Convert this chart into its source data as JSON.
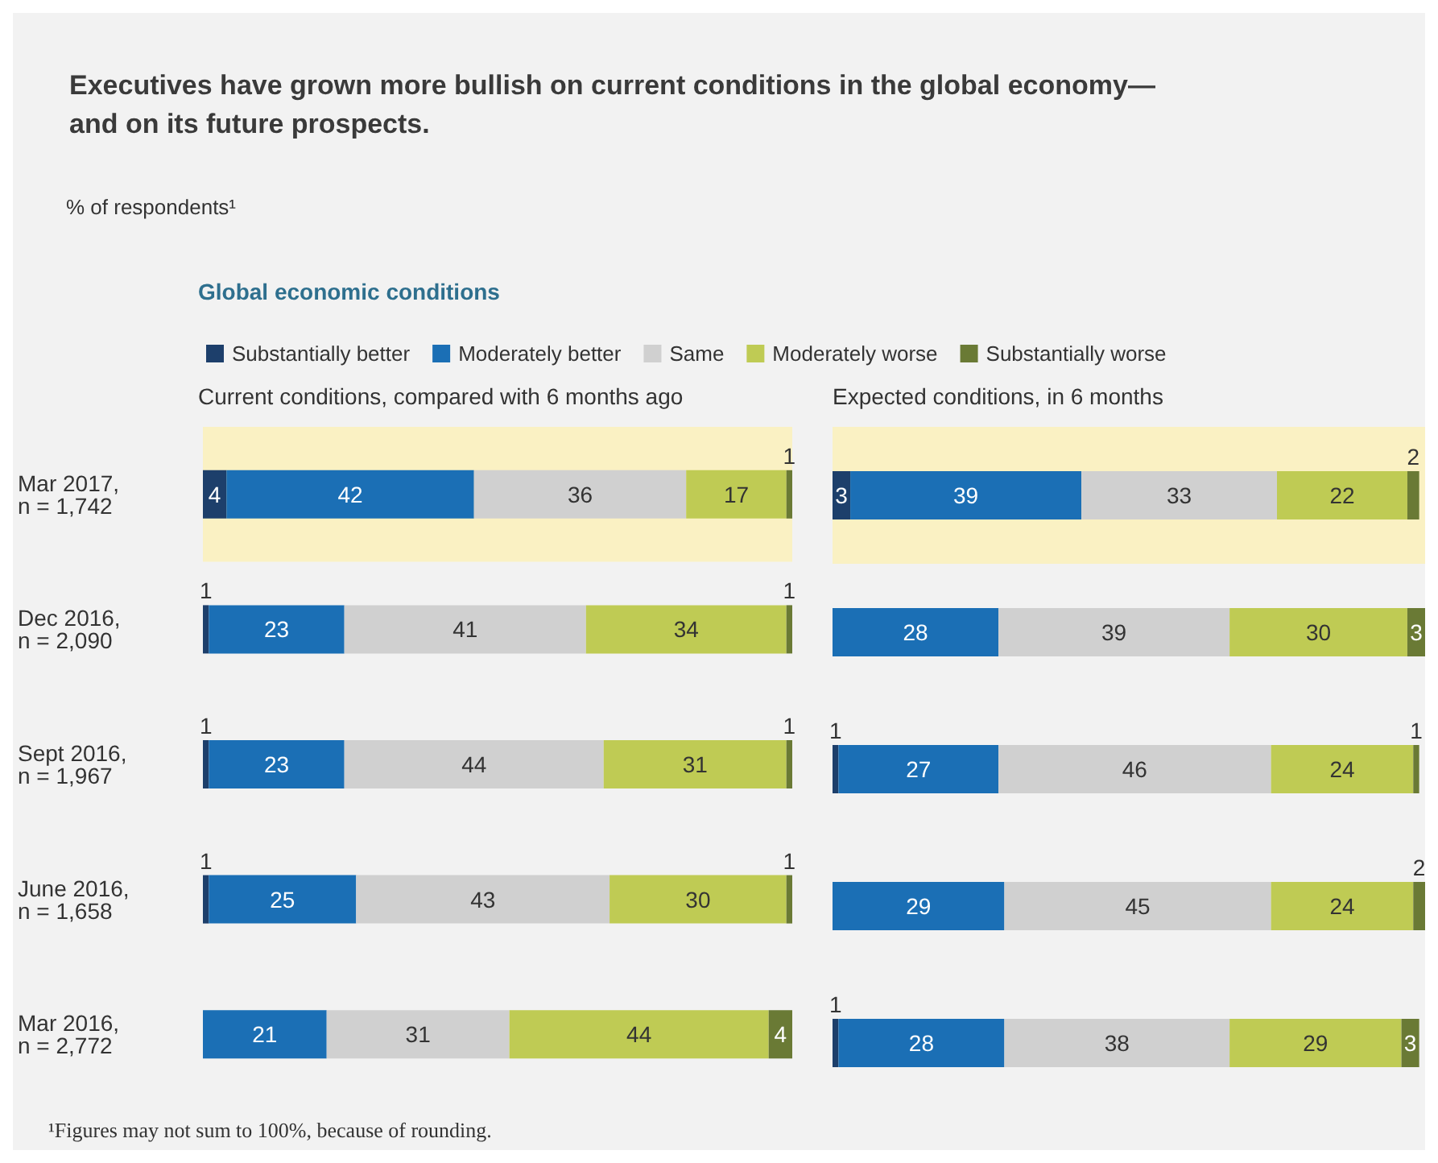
{
  "chart_data": [
    {
      "type": "bar",
      "orientation": "horizontal",
      "stacked": true,
      "data_labels": true,
      "tick_labels": "y",
      "legend": "top",
      "title": "Executives have grown more bullish on current conditions in the global economy—\nand on its future prospects.",
      "subtitle": "% of respondents¹",
      "legend_title": "Global economic conditions",
      "xlabel": "Current conditions, compared with 6 months ago",
      "annotations": [
        "¹Figures may not sum to 100%, because of rounding."
      ],
      "categories": [
        "Mar 2017,\nn = 1,742",
        "Dec 2016,\nn = 2,090",
        "Sept 2016,\nn = 1,967",
        "June 2016,\nn = 1,658",
        "Mar 2016,\nn = 2,772"
      ],
      "bands": [
        {
          "axis": "y",
          "from": "Mar 2017,\nn = 1,742",
          "to": "Mar 2017,\nn = 1,742",
          "color": "#faf1c3"
        }
      ],
      "series": [
        {
          "name": "Substantially better",
          "color": "#1d3f6b",
          "values": [
            4,
            1,
            1,
            1,
            null
          ]
        },
        {
          "name": "Moderately better",
          "color": "#1b6fb5",
          "values": [
            42,
            23,
            23,
            25,
            21
          ]
        },
        {
          "name": "Same",
          "color": "#d0d0d0",
          "values": [
            36,
            41,
            44,
            43,
            31
          ]
        },
        {
          "name": "Moderately worse",
          "color": "#bfcb54",
          "values": [
            17,
            34,
            31,
            30,
            44
          ]
        },
        {
          "name": "Substantially worse",
          "color": "#6a7a35",
          "values": [
            1,
            1,
            1,
            1,
            4
          ]
        }
      ]
    },
    {
      "type": "bar",
      "orientation": "horizontal",
      "stacked": true,
      "data_labels": true,
      "tick_labels": false,
      "xlabel": "Expected conditions, in 6 months",
      "categories": [
        "Mar 2017,\nn = 1,742",
        "Dec 2016,\nn = 2,090",
        "Sept 2016,\nn = 1,967",
        "June 2016,\nn = 1,658",
        "Mar 2016,\nn = 2,772"
      ],
      "bands": [
        {
          "axis": "y",
          "from": "Mar 2017,\nn = 1,742",
          "to": "Mar 2017,\nn = 1,742",
          "color": "#faf1c3"
        }
      ],
      "series": [
        {
          "color": "#1d3f6b",
          "values": [
            3,
            null,
            1,
            null,
            1
          ]
        },
        {
          "color": "#1b6fb5",
          "values": [
            39,
            28,
            27,
            29,
            28
          ]
        },
        {
          "color": "#d0d0d0",
          "values": [
            33,
            39,
            46,
            45,
            38
          ]
        },
        {
          "color": "#bfcb54",
          "values": [
            22,
            30,
            24,
            24,
            29
          ]
        },
        {
          "color": "#6a7a35",
          "values": [
            2,
            3,
            1,
            2,
            3
          ]
        }
      ]
    }
  ]
}
